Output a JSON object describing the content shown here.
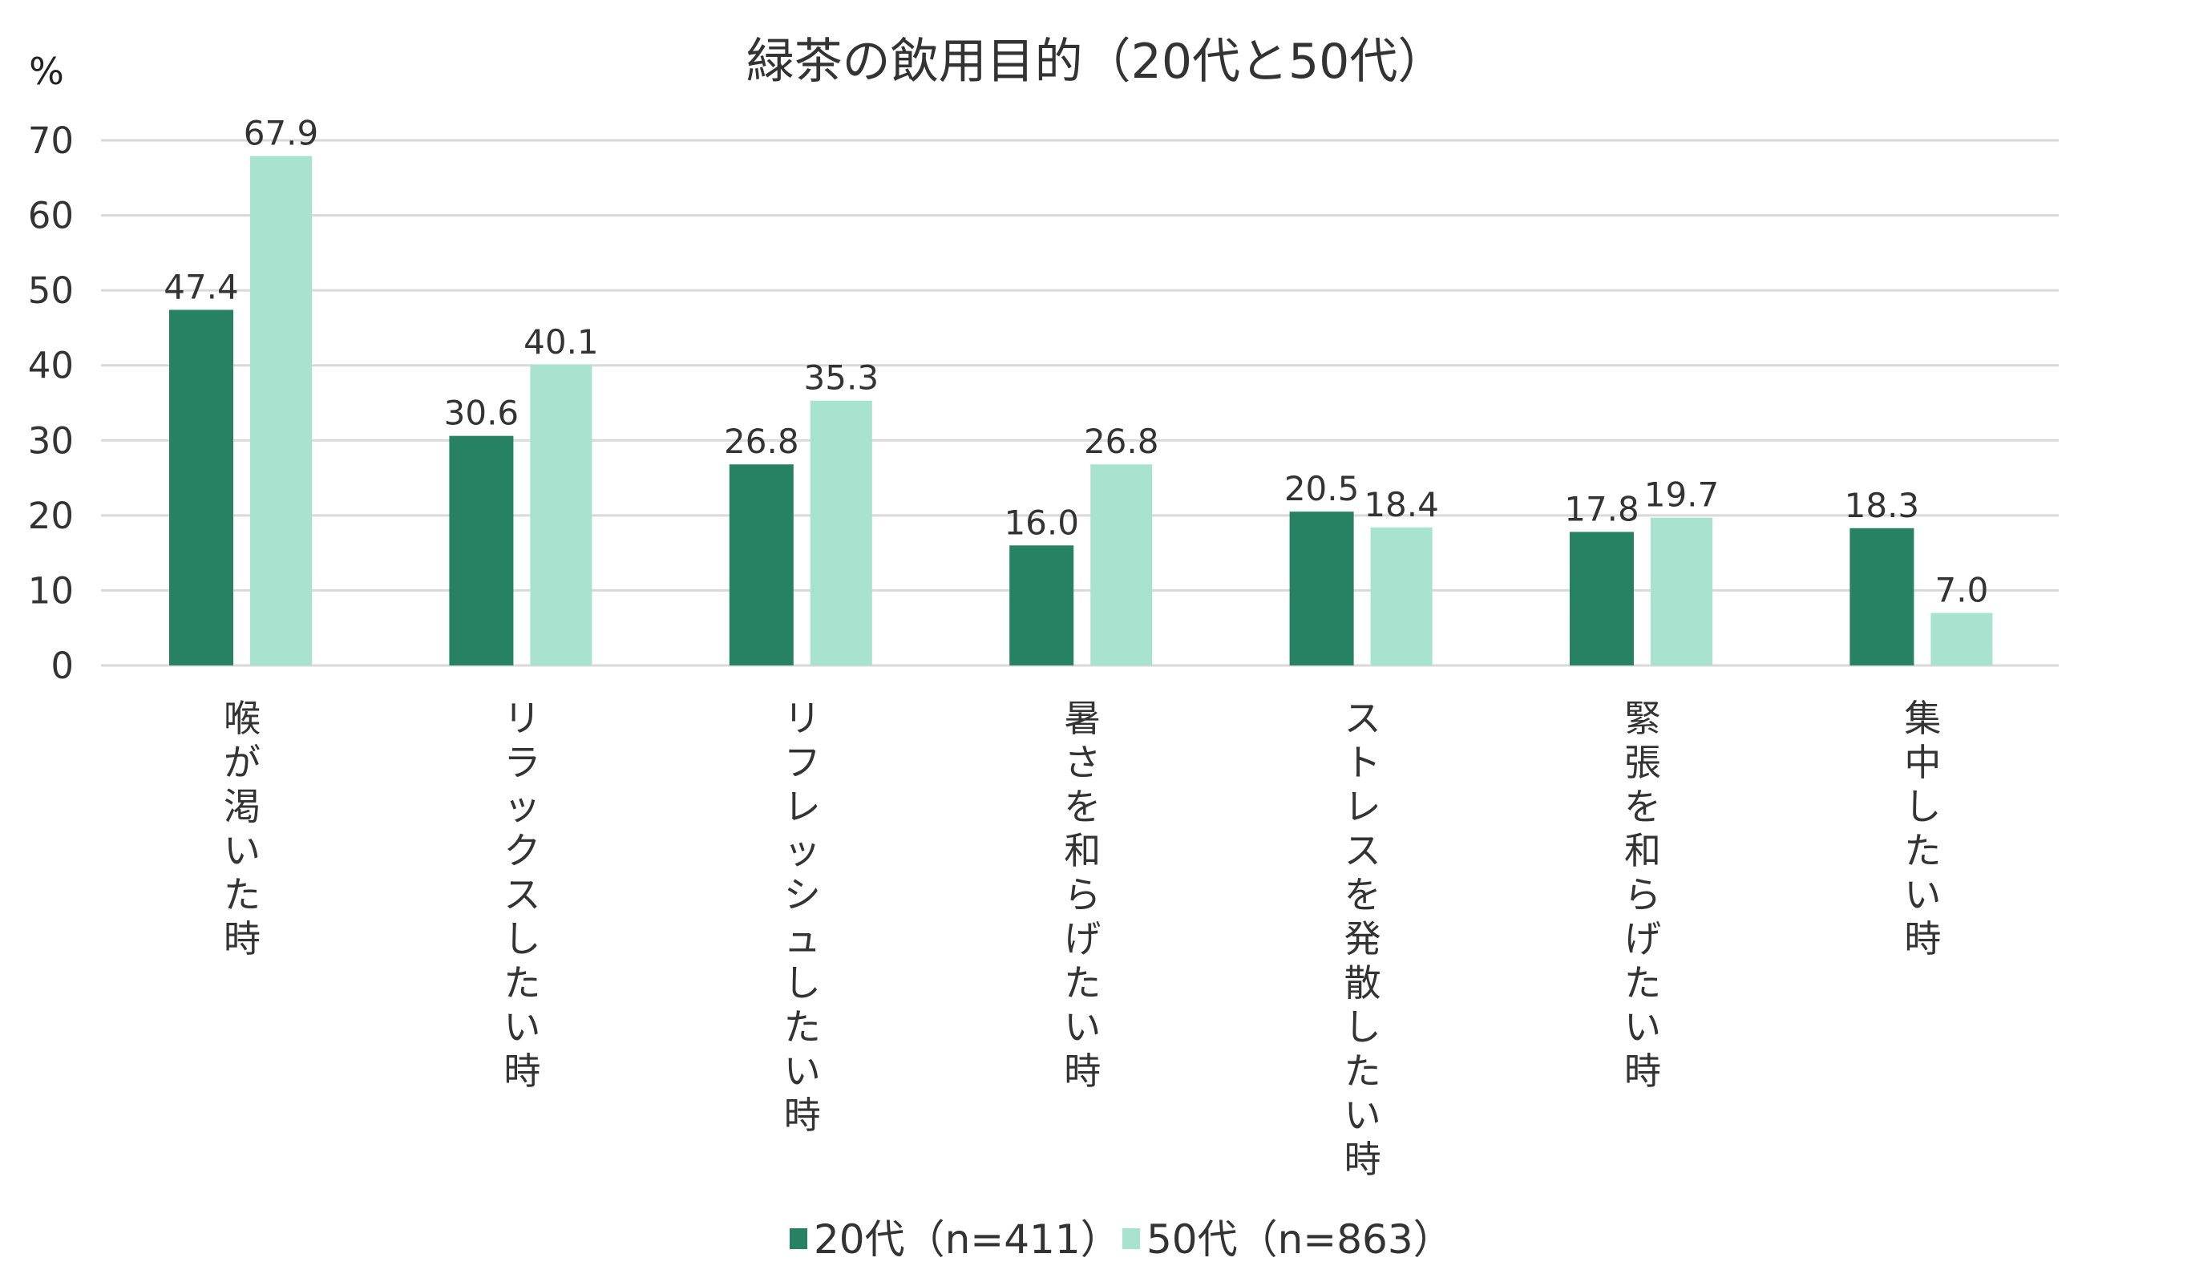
{
  "chart_data": {
    "type": "bar",
    "title": "緑茶の飲用目的（20代と50代）",
    "ylabel": "%",
    "xlabel": "",
    "ylim": [
      0,
      70
    ],
    "yticks": [
      0,
      10,
      20,
      30,
      40,
      50,
      60,
      70
    ],
    "grid": true,
    "legend_position": "bottom",
    "categories": [
      "喉が渇いた時",
      "リラックスしたい時",
      "リフレッシュしたい時",
      "暑さを和らげたい時",
      "ストレスを発散したい時",
      "緊張を和らげたい時",
      "集中したい時"
    ],
    "series": [
      {
        "name": "20代（n=411）",
        "color": "#268262",
        "values": [
          47.4,
          30.6,
          26.8,
          16.0,
          20.5,
          17.8,
          18.3
        ],
        "labels": [
          "47.4",
          "30.6",
          "26.8",
          "16.0",
          "20.5",
          "17.8",
          "18.3"
        ]
      },
      {
        "name": "50代（n=863）",
        "color": "#a8e3cf",
        "values": [
          67.9,
          40.1,
          35.3,
          26.8,
          18.4,
          19.7,
          7.0
        ],
        "labels": [
          "67.9",
          "40.1",
          "35.3",
          "26.8",
          "18.4",
          "19.7",
          "7.0"
        ]
      }
    ]
  }
}
